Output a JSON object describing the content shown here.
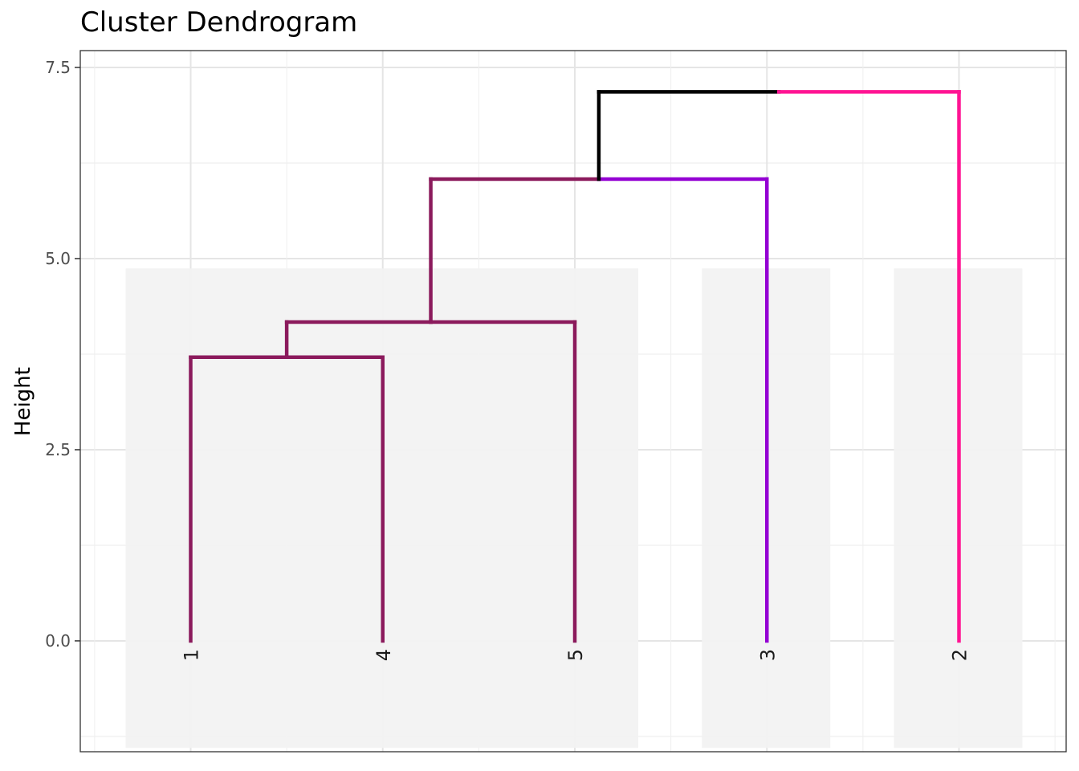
{
  "chart_data": {
    "type": "dendrogram",
    "title": "Cluster Dendrogram",
    "xlabel": "",
    "ylabel": "Height",
    "ylim": [
      -1.45,
      7.72
    ],
    "yticks": [
      0.0,
      2.5,
      5.0,
      7.5
    ],
    "ytick_labels": [
      "0.0",
      "2.5",
      "5.0",
      "7.5"
    ],
    "leaves": [
      {
        "label": "1",
        "pos": 1,
        "color": "#8b1a5c"
      },
      {
        "label": "4",
        "pos": 2,
        "color": "#8b1a5c"
      },
      {
        "label": "5",
        "pos": 3,
        "color": "#8b1a5c"
      },
      {
        "label": "3",
        "pos": 4,
        "color": "#9400d3"
      },
      {
        "label": "2",
        "pos": 5,
        "color": "#ff1493"
      }
    ],
    "merges": [
      {
        "left": 1,
        "right": 2,
        "left_height": 0,
        "right_height": 0,
        "height": 3.71,
        "color": "#8b1a5c"
      },
      {
        "left": 1.5,
        "right": 3,
        "left_height": 3.71,
        "right_height": 0,
        "height": 4.17,
        "color": "#8b1a5c"
      },
      {
        "left": 2.25,
        "right": 4,
        "left_height": 4.17,
        "right_height": 0,
        "height": 6.04,
        "left_color": "#8b1a5c",
        "right_color": "#9400d3"
      },
      {
        "left": 3.125,
        "right": 5,
        "left_height": 6.04,
        "right_height": 0,
        "height": 7.18,
        "left_color": "#000000",
        "right_color": "#ff1493"
      }
    ],
    "cluster_rects": [
      {
        "from_leaf": 1,
        "to_leaf": 3,
        "ymin": -1.4,
        "ymax": 4.87,
        "color": "#f2f2f2"
      },
      {
        "from_leaf": 4,
        "to_leaf": 4,
        "ymin": -1.4,
        "ymax": 4.87,
        "color": "#f2f2f2"
      },
      {
        "from_leaf": 5,
        "to_leaf": 5,
        "ymin": -1.4,
        "ymax": 4.87,
        "color": "#f2f2f2"
      }
    ],
    "grid": true,
    "legend": "none"
  }
}
